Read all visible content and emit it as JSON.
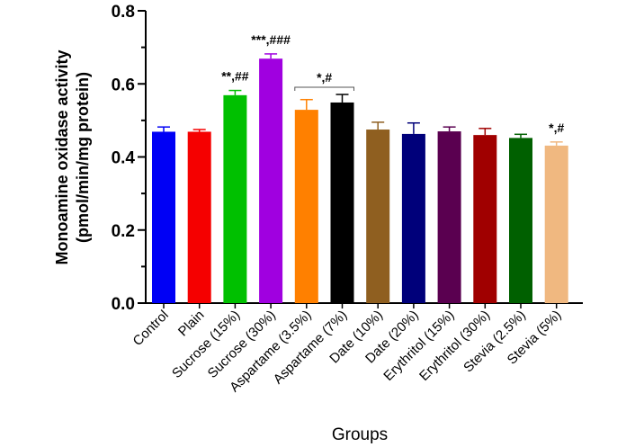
{
  "chart_data": {
    "type": "bar",
    "title": "",
    "xlabel": "Groups",
    "ylabel_line1": "Monoamine oxidase activity",
    "ylabel_line2": "(pmol/min/mg protein)",
    "ylim": [
      0,
      0.8
    ],
    "yticks": [
      0.0,
      0.2,
      0.4,
      0.6,
      0.8
    ],
    "ytick_labels": [
      "0.0",
      "0.2",
      "0.4",
      "0.6",
      "0.8"
    ],
    "grid": false,
    "categories": [
      "Control",
      "Plain",
      "Sucrose (15%)",
      "Sucrose (30%)",
      "Aspartame (3.5%)",
      "Aspartame (7%)",
      "Date (10%)",
      "Date (20%)",
      "Erythritol (15%)",
      "Erythritol (30%)",
      "Stevia (2.5%)",
      "Stevia (5%)"
    ],
    "values": [
      0.469,
      0.469,
      0.569,
      0.669,
      0.529,
      0.549,
      0.475,
      0.463,
      0.47,
      0.46,
      0.452,
      0.431
    ],
    "errors": [
      0.013,
      0.006,
      0.013,
      0.013,
      0.028,
      0.022,
      0.02,
      0.03,
      0.012,
      0.018,
      0.01,
      0.01
    ],
    "colors": [
      "#0000f5",
      "#f50000",
      "#00c000",
      "#a000e0",
      "#ff8000",
      "#000000",
      "#8f5f20",
      "#00007a",
      "#5a0050",
      "#a00000",
      "#006000",
      "#f0b880"
    ],
    "annotations": [
      {
        "category_index": 2,
        "text": "**,##"
      },
      {
        "category_index": 3,
        "text": "***,###"
      },
      {
        "category_index": 11,
        "text": "*,#"
      },
      {
        "bracket_from": 4,
        "bracket_to": 5,
        "text": "*,#"
      }
    ]
  }
}
